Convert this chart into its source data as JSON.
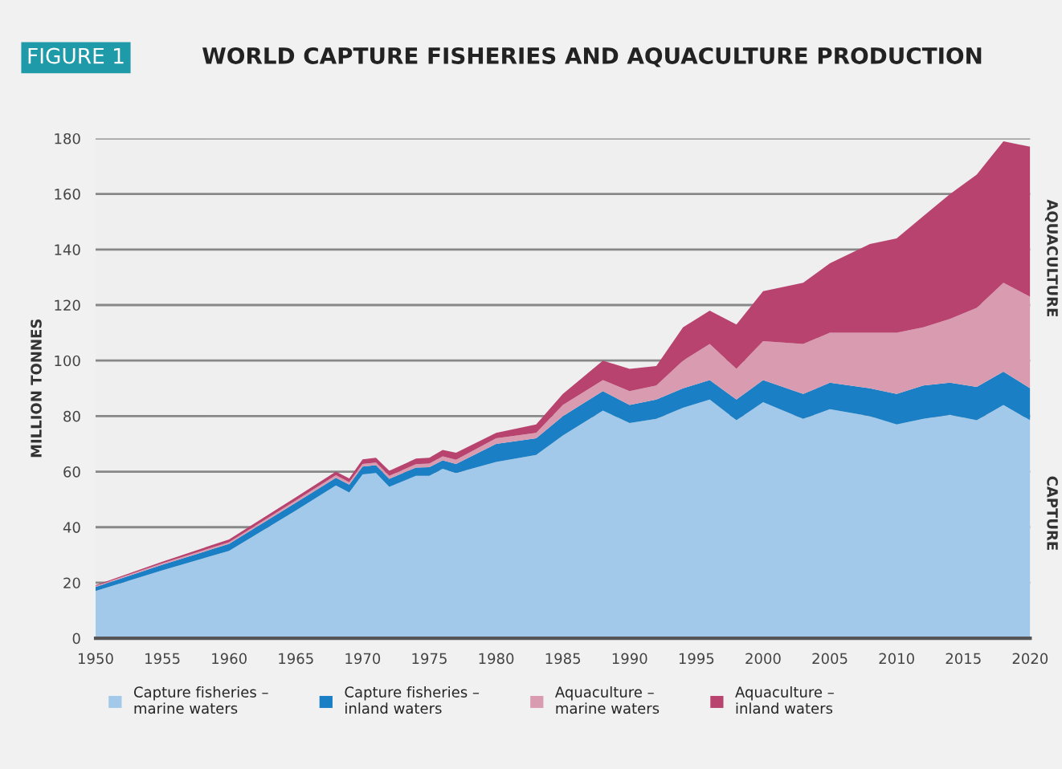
{
  "chart_data": {
    "type": "area",
    "stacked": true,
    "title": "WORLD CAPTURE FISHERIES AND AQUACULTURE PRODUCTION",
    "ylabel": "MILLION TONNES",
    "annotations": [
      "FIGURE 1",
      "AQUACULTURE",
      "CAPTURE"
    ],
    "x": [
      1950,
      1955,
      1960,
      1965,
      1968,
      1969,
      1970,
      1971,
      1972,
      1974,
      1975,
      1976,
      1977,
      1980,
      1983,
      1985,
      1988,
      1990,
      1992,
      1994,
      1996,
      1998,
      2000,
      2003,
      2005,
      2008,
      2010,
      2012,
      2014,
      2016,
      2018,
      2020
    ],
    "series": [
      {
        "name": "Capture fisheries – marine waters",
        "color": "#a3c9ea",
        "values": [
          17,
          24.5,
          31.5,
          46,
          55,
          52.5,
          59,
          59.5,
          54.5,
          58.5,
          58.5,
          61,
          59.5,
          63.5,
          66,
          73,
          82,
          77.5,
          79,
          83,
          86,
          78.5,
          85,
          79,
          82.5,
          80,
          77,
          79,
          80.5,
          78.5,
          84,
          78.5
        ]
      },
      {
        "name": "Capture fisheries – inland waters",
        "color": "#1a7fc4",
        "values": [
          1.5,
          2,
          2.5,
          2.8,
          2.8,
          2.8,
          2.8,
          2.8,
          2.9,
          3,
          3.1,
          3.1,
          3.3,
          6.5,
          6,
          7,
          7,
          6.5,
          7,
          7,
          7,
          7.5,
          8,
          9,
          9.5,
          10,
          11,
          12,
          11.5,
          12,
          12,
          11.5
        ]
      },
      {
        "name": "Aquaculture – marine waters",
        "color": "#d99bb0",
        "values": [
          0.3,
          0.5,
          0.6,
          0.8,
          0.9,
          0.9,
          1,
          1,
          1.1,
          1.2,
          1.3,
          1.4,
          1.5,
          2,
          2,
          4,
          4,
          5,
          5,
          10,
          13,
          11,
          14,
          18,
          18,
          20,
          22,
          21,
          23,
          28.5,
          32,
          33
        ]
      },
      {
        "name": "Aquaculture – inland waters",
        "color": "#b8436f",
        "values": [
          0.3,
          0.6,
          1,
          1.2,
          1.3,
          1.4,
          1.6,
          1.7,
          1.8,
          2,
          2.1,
          2.3,
          2.5,
          2,
          3,
          4,
          7,
          8,
          7,
          12,
          12,
          16,
          18,
          22,
          25,
          32,
          34,
          40,
          45,
          48,
          51,
          54
        ]
      }
    ],
    "xlim": [
      1950,
      2020
    ],
    "ylim": [
      0,
      180
    ],
    "xticks": [
      1950,
      1955,
      1960,
      1965,
      1970,
      1975,
      1980,
      1985,
      1990,
      1995,
      2000,
      2005,
      2010,
      2015,
      2020
    ],
    "yticks": [
      0,
      20,
      40,
      60,
      80,
      100,
      120,
      140,
      160,
      180
    ],
    "grid": "y",
    "legend": "bottom"
  }
}
